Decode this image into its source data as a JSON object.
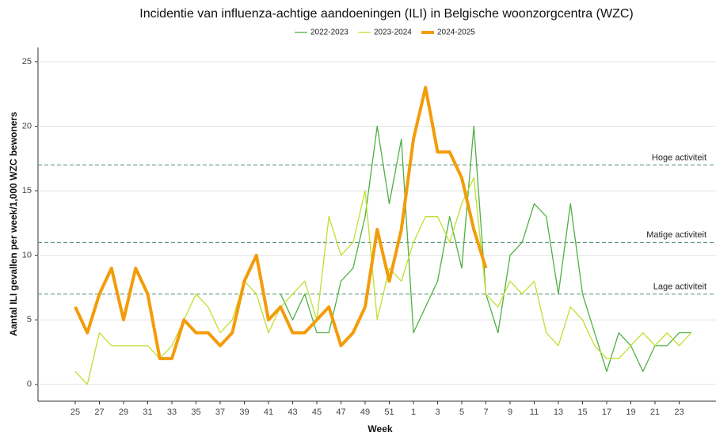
{
  "chart_data": {
    "type": "line",
    "title": "Incidentie van influenza-achtige aandoeningen (ILI) in Belgische woonzorgcentra (WZC)",
    "x_label": "Week",
    "y_label": "Aantal ILI gevallen per week/1,000 WZC bewoners",
    "categories": [
      "25",
      null,
      "27",
      null,
      "29",
      null,
      "31",
      null,
      "33",
      null,
      "35",
      null,
      "37",
      null,
      "39",
      null,
      "41",
      null,
      "43",
      null,
      "45",
      null,
      "47",
      null,
      "49",
      null,
      "51",
      null,
      "1",
      null,
      "3",
      null,
      "5",
      null,
      "7",
      null,
      "9",
      null,
      "11",
      null,
      "13",
      null,
      "15",
      null,
      "17",
      null,
      "19",
      null,
      "21",
      null,
      "23",
      null
    ],
    "series": [
      {
        "name": "2022-2023",
        "color": "#4fb043",
        "width": 1.3,
        "values": [
          null,
          null,
          null,
          null,
          null,
          null,
          null,
          null,
          null,
          null,
          null,
          null,
          null,
          null,
          null,
          null,
          null,
          7,
          5,
          7,
          4,
          4,
          8,
          9,
          13,
          20,
          14,
          19,
          4,
          6,
          8,
          13,
          9,
          20,
          7,
          4,
          10,
          11,
          14,
          13,
          7,
          14,
          7,
          4,
          1,
          4,
          3,
          1,
          3,
          3,
          4,
          4
        ]
      },
      {
        "name": "2023-2024",
        "color": "#c2de2e",
        "width": 1.3,
        "values": [
          1,
          0,
          4,
          3,
          3,
          3,
          3,
          2,
          3,
          5,
          7,
          6,
          4,
          5,
          8,
          7,
          4,
          6,
          7,
          8,
          5,
          13,
          10,
          11,
          15,
          5,
          9,
          8,
          11,
          13,
          13,
          11,
          14,
          16,
          7,
          6,
          8,
          7,
          8,
          4,
          3,
          6,
          5,
          3,
          2,
          2,
          3,
          4,
          3,
          4,
          3,
          4
        ]
      },
      {
        "name": "2024-2025",
        "color": "#f39c0a",
        "width": 4,
        "values": [
          6,
          4,
          7,
          9,
          5,
          9,
          7,
          2,
          2,
          5,
          4,
          4,
          3,
          4,
          8,
          10,
          5,
          6,
          4,
          4,
          5,
          6,
          3,
          4,
          6,
          12,
          8,
          12,
          19,
          23,
          18,
          18,
          16,
          12,
          9,
          null,
          null,
          null,
          null,
          null,
          null,
          null,
          null,
          null,
          null,
          null,
          null,
          null,
          null,
          null,
          null,
          null
        ]
      }
    ],
    "thresholds": [
      {
        "value": 17,
        "label": "Hoge activiteit"
      },
      {
        "value": 11,
        "label": "Matige activiteit"
      },
      {
        "value": 7,
        "label": "Lage activiteit"
      }
    ],
    "ylim": [
      -1.3,
      26.1
    ],
    "yticks": [
      0,
      5,
      10,
      15,
      20,
      25
    ],
    "grid": true,
    "legend": "top"
  }
}
